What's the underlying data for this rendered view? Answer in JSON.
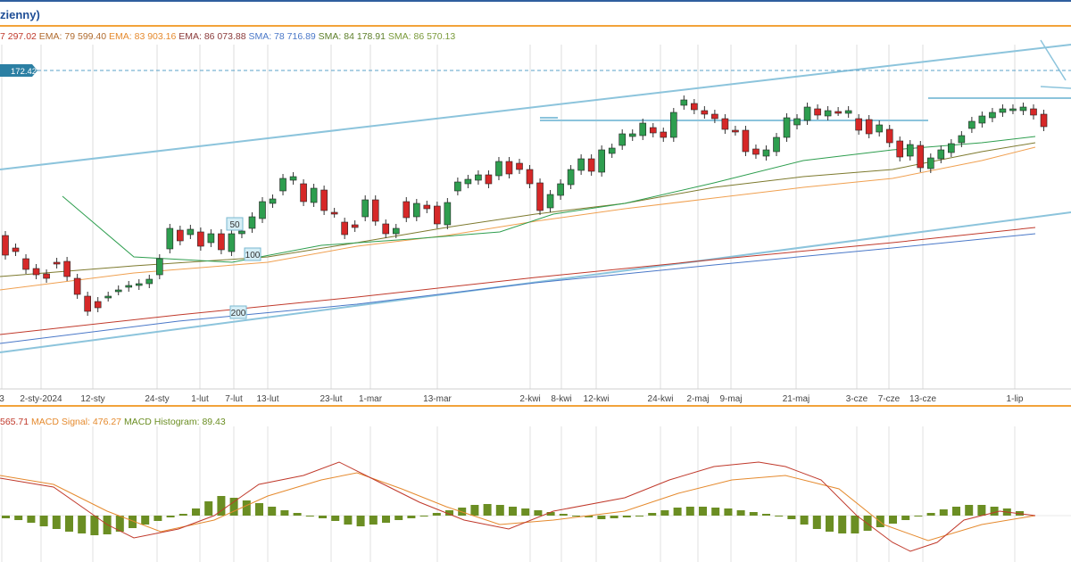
{
  "header": {
    "title": "zienny)"
  },
  "legend": [
    {
      "text": "7 297.02",
      "color": "#c0392b"
    },
    {
      "text": "EMA: 79 599.40",
      "color": "#b06b2e"
    },
    {
      "text": "EMA: 83 903.16",
      "color": "#e58a2e"
    },
    {
      "text": "EMA: 86 073.88",
      "color": "#8a3a3a"
    },
    {
      "text": "SMA: 78 716.89",
      "color": "#4a78c8"
    },
    {
      "text": "SMA: 84 178.91",
      "color": "#5d7f2a"
    },
    {
      "text": "SMA: 86 570.13",
      "color": "#7a9a3a"
    }
  ],
  "macd_legend": [
    {
      "text": "565.71",
      "color": "#c0392b"
    },
    {
      "text": "MACD Signal: 476.27",
      "color": "#e58a2e"
    },
    {
      "text": "MACD Histogram: 89.43",
      "color": "#6b8e23"
    }
  ],
  "colors": {
    "up": "#2e9e4f",
    "down": "#d62828",
    "channel": "#8cc4dc",
    "sma50": "#2e9e4f",
    "sma100": "#7d7a2e",
    "ema_orange": "#f0a050",
    "ma200_red": "#c0392b",
    "ma200_blue": "#4a78c8",
    "macd": "#c0392b",
    "signal": "#e58a2e",
    "hist": "#6b8e23"
  },
  "price_badge": "172.42",
  "ma_labels": [
    "50",
    "100",
    "200"
  ],
  "chart_data": [
    {
      "type": "candlestick",
      "x_tick_labels": [
        "3",
        "2-sty-2024",
        "12-sty",
        "24-sty",
        "1-lut",
        "7-lut",
        "13-lut",
        "23-lut",
        "1-mar",
        "13-mar",
        "2-kwi",
        "8-kwi",
        "12-kwi",
        "24-kwi",
        "2-maj",
        "9-maj",
        "21-maj",
        "3-cze",
        "7-cze",
        "13-cze",
        "1-lip"
      ],
      "candles": [
        [
          214,
          236
        ],
        [
          228,
          232
        ],
        [
          240,
          252
        ],
        [
          251,
          258
        ],
        [
          257,
          262
        ],
        [
          244,
          246
        ],
        [
          243,
          260
        ],
        [
          262,
          280
        ],
        [
          282,
          299
        ],
        [
          288,
          295
        ],
        [
          283,
          282
        ],
        [
          276,
          275
        ],
        [
          272,
          270
        ],
        [
          270,
          268
        ],
        [
          268,
          263
        ],
        [
          258,
          240
        ],
        [
          229,
          206
        ],
        [
          208,
          220
        ],
        [
          213,
          207
        ],
        [
          210,
          226
        ],
        [
          222,
          212
        ],
        [
          212,
          230
        ],
        [
          232,
          212
        ],
        [
          212,
          209
        ],
        [
          206,
          193
        ],
        [
          195,
          176
        ],
        [
          178,
          173
        ],
        [
          164,
          150
        ],
        [
          152,
          148
        ],
        [
          156,
          176
        ],
        [
          177,
          161
        ],
        [
          163,
          186
        ],
        [
          188,
          189
        ],
        [
          199,
          213
        ],
        [
          202,
          205
        ],
        [
          193,
          174
        ],
        [
          174,
          198
        ],
        [
          201,
          212
        ],
        [
          212,
          206
        ],
        [
          176,
          194
        ],
        [
          193,
          178
        ],
        [
          180,
          184
        ],
        [
          181,
          201
        ],
        [
          202,
          177
        ],
        [
          164,
          154
        ],
        [
          156,
          151
        ],
        [
          152,
          146
        ],
        [
          146,
          156
        ],
        [
          147,
          131
        ],
        [
          131,
          145
        ],
        [
          133,
          140
        ],
        [
          140,
          156
        ],
        [
          155,
          186
        ],
        [
          183,
          168
        ],
        [
          169,
          156
        ],
        [
          157,
          140
        ],
        [
          141,
          128
        ],
        [
          128,
          142
        ],
        [
          143,
          118
        ],
        [
          122,
          116
        ],
        [
          113,
          100
        ],
        [
          103,
          100
        ],
        [
          102,
          88
        ],
        [
          93,
          99
        ],
        [
          98,
          104
        ],
        [
          104,
          76
        ],
        [
          68,
          62
        ],
        [
          66,
          73
        ],
        [
          74,
          78
        ],
        [
          78,
          83
        ],
        [
          83,
          95
        ],
        [
          96,
          97
        ],
        [
          96,
          120
        ],
        [
          117,
          123
        ],
        [
          125,
          118
        ],
        [
          120,
          104
        ],
        [
          104,
          82
        ],
        [
          90,
          83
        ],
        [
          85,
          70
        ],
        [
          72,
          79
        ],
        [
          80,
          74
        ],
        [
          75,
          75
        ],
        [
          77,
          74
        ],
        [
          83,
          96
        ],
        [
          84,
          100
        ],
        [
          98,
          90
        ],
        [
          95,
          110
        ],
        [
          108,
          126
        ],
        [
          125,
          112
        ],
        [
          113,
          138
        ],
        [
          139,
          127
        ],
        [
          128,
          118
        ],
        [
          121,
          111
        ],
        [
          110,
          102
        ],
        [
          94,
          86
        ],
        [
          88,
          80
        ],
        [
          82,
          76
        ],
        [
          76,
          72
        ],
        [
          73,
          72
        ],
        [
          74,
          70
        ],
        [
          72,
          79
        ],
        [
          78,
          92
        ]
      ],
      "sma50": [
        70,
        170,
        150,
        238,
        260,
        244,
        360,
        225,
        460,
        218,
        560,
        210,
        620,
        190,
        700,
        178,
        800,
        155,
        900,
        130,
        1000,
        118,
        1100,
        110,
        1160,
        103
      ],
      "sma100": [
        0,
        260,
        150,
        248,
        300,
        238,
        400,
        222,
        500,
        205,
        600,
        190,
        700,
        178,
        800,
        160,
        900,
        148,
        1000,
        140,
        1100,
        120,
        1160,
        110
      ],
      "ema_orange": [
        0,
        275,
        150,
        256,
        300,
        244,
        400,
        226,
        500,
        214,
        600,
        198,
        700,
        184,
        800,
        172,
        900,
        160,
        1000,
        150,
        1100,
        130,
        1160,
        115
      ],
      "ma200_red": [
        0,
        325,
        200,
        303,
        400,
        283,
        600,
        261,
        800,
        241,
        1000,
        222,
        1160,
        205
      ],
      "ma200_blue": [
        0,
        335,
        200,
        310,
        400,
        291,
        600,
        267,
        800,
        247,
        1000,
        228,
        1160,
        212
      ],
      "channel_upper": [
        0,
        140,
        1200,
        0
      ],
      "channel_lower": [
        0,
        345,
        1200,
        188
      ],
      "horizontals": [
        [
          605,
          625,
          82
        ],
        [
          605,
          1040,
          85
        ],
        [
          1040,
          1200,
          60
        ]
      ],
      "price_level_dashed": 30
    },
    {
      "type": "macd",
      "macd": [
        0,
        58,
        60,
        68,
        120,
        110,
        150,
        125,
        200,
        115,
        240,
        100,
        290,
        65,
        340,
        55,
        380,
        40,
        420,
        60,
        470,
        85,
        520,
        105,
        570,
        115,
        620,
        95,
        700,
        80,
        750,
        60,
        800,
        45,
        850,
        40,
        880,
        45,
        920,
        60,
        960,
        100,
        1000,
        130,
        1020,
        140,
        1050,
        130,
        1080,
        105,
        1120,
        95,
        1160,
        100
      ],
      "signal": [
        0,
        55,
        60,
        65,
        120,
        95,
        180,
        118,
        240,
        105,
        300,
        78,
        360,
        60,
        400,
        52,
        450,
        70,
        500,
        90,
        560,
        110,
        620,
        105,
        700,
        95,
        760,
        75,
        820,
        60,
        880,
        55,
        940,
        70,
        990,
        110,
        1040,
        128,
        1100,
        110,
        1160,
        100
      ],
      "histogram": [
        -3,
        -5,
        -8,
        -12,
        -15,
        -18,
        -20,
        -22,
        -21,
        -18,
        -14,
        -10,
        -6,
        -2,
        2,
        8,
        16,
        22,
        20,
        17,
        14,
        10,
        6,
        3,
        0,
        -3,
        -6,
        -10,
        -12,
        -10,
        -8,
        -5,
        -3,
        0,
        3,
        6,
        9,
        12,
        13,
        12,
        10,
        8,
        6,
        4,
        2,
        0,
        -2,
        -4,
        -3,
        -2,
        0,
        3,
        6,
        9,
        10,
        10,
        9,
        8,
        6,
        4,
        2,
        0,
        -4,
        -10,
        -15,
        -18,
        -20,
        -20,
        -17,
        -13,
        -9,
        -5,
        -1,
        3,
        7,
        10,
        12,
        12,
        10,
        8,
        5
      ],
      "zero_level": 100
    }
  ]
}
